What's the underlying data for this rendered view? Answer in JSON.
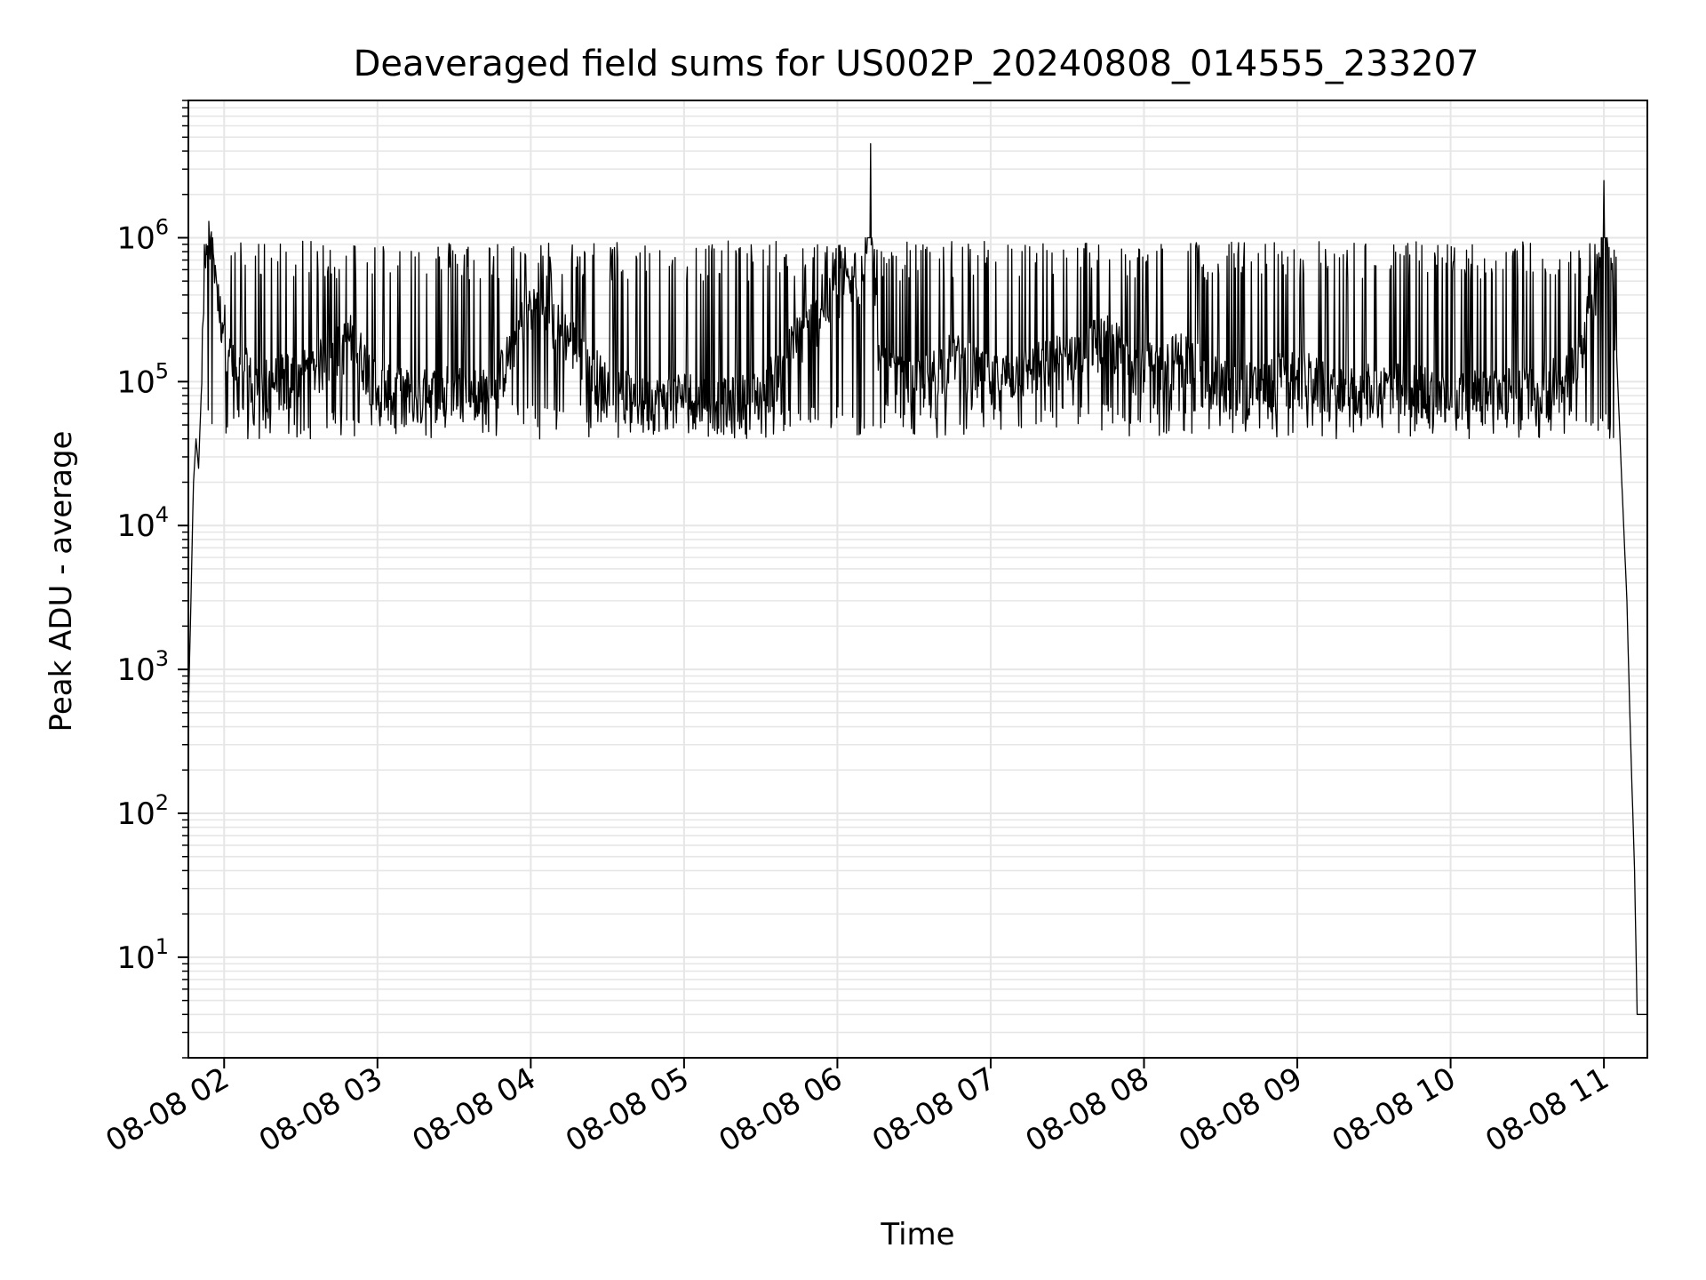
{
  "chart_data": {
    "type": "line",
    "title": "Deaveraged field sums for US002P_20240808_014555_233207",
    "xlabel": "Time",
    "ylabel": "Peak ADU - average",
    "yscale": "log",
    "xlim": [
      "2024-08-08T01:46:00",
      "2024-08-08T11:17:00"
    ],
    "ylim": [
      2,
      9000000
    ],
    "grid": true,
    "line_color": "#000000",
    "grid_color": "#e6e6e6",
    "x_tick_labels": [
      "08-08 02",
      "08-08 03",
      "08-08 04",
      "08-08 05",
      "08-08 06",
      "08-08 07",
      "08-08 08",
      "08-08 09",
      "08-08 10",
      "08-08 11"
    ],
    "x_tick_values": [
      "2024-08-08T02:00:00",
      "2024-08-08T03:00:00",
      "2024-08-08T04:00:00",
      "2024-08-08T05:00:00",
      "2024-08-08T06:00:00",
      "2024-08-08T07:00:00",
      "2024-08-08T08:00:00",
      "2024-08-08T09:00:00",
      "2024-08-08T10:00:00",
      "2024-08-08T11:00:00"
    ],
    "y_tick_exponents": [
      "1",
      "2",
      "3",
      "4",
      "5",
      "6"
    ],
    "y_tick_values": [
      10,
      100,
      1000,
      10000,
      100000,
      1000000
    ],
    "series": [
      {
        "x": [
          "2024-08-08T01:46:00",
          "2024-08-08T01:47:00",
          "2024-08-08T01:48:00",
          "2024-08-08T01:49:00",
          "2024-08-08T01:50:00",
          "2024-08-08T01:51:00",
          "2024-08-08T01:52:00",
          "2024-08-08T01:53:00",
          "2024-08-08T01:54:00",
          "2024-08-08T01:55:00",
          "2024-08-08T01:56:00",
          "2024-08-08T01:57:00",
          "2024-08-08T01:58:00",
          "2024-08-08T02:00:00",
          "2024-08-08T02:02:00",
          "2024-08-08T02:05:00",
          "2024-08-08T02:08:00",
          "2024-08-08T02:12:00",
          "2024-08-08T02:20:00",
          "2024-08-08T02:35:00",
          "2024-08-08T02:50:00",
          "2024-08-08T03:00:00",
          "2024-08-08T03:15:00",
          "2024-08-08T03:30:00",
          "2024-08-08T03:45:00",
          "2024-08-08T04:00:00",
          "2024-08-08T04:15:00",
          "2024-08-08T04:30:00",
          "2024-08-08T04:45:00",
          "2024-08-08T05:00:00",
          "2024-08-08T05:15:00",
          "2024-08-08T05:30:00",
          "2024-08-08T05:45:00",
          "2024-08-08T06:00:00",
          "2024-08-08T06:10:00",
          "2024-08-08T06:13:00",
          "2024-08-08T06:16:00",
          "2024-08-08T06:30:00",
          "2024-08-08T06:45:00",
          "2024-08-08T07:00:00",
          "2024-08-08T07:15:00",
          "2024-08-08T07:30:00",
          "2024-08-08T07:45:00",
          "2024-08-08T08:00:00",
          "2024-08-08T08:15:00",
          "2024-08-08T08:30:00",
          "2024-08-08T08:45:00",
          "2024-08-08T09:00:00",
          "2024-08-08T09:15:00",
          "2024-08-08T09:30:00",
          "2024-08-08T09:45:00",
          "2024-08-08T10:00:00",
          "2024-08-08T10:15:00",
          "2024-08-08T10:30:00",
          "2024-08-08T10:45:00",
          "2024-08-08T10:52:00",
          "2024-08-08T10:57:00",
          "2024-08-08T11:00:00",
          "2024-08-08T11:03:00",
          "2024-08-08T11:05:00",
          "2024-08-08T11:07:00",
          "2024-08-08T11:09:00",
          "2024-08-08T11:10:00",
          "2024-08-08T11:11:00",
          "2024-08-08T11:12:00",
          "2024-08-08T11:13:00",
          "2024-08-08T11:15:00",
          "2024-08-08T11:17:00"
        ],
        "values": [
          500,
          3000,
          20000,
          40000,
          25000,
          80000,
          300000,
          900000,
          1300000,
          1100000,
          700000,
          500000,
          300000,
          250000,
          150000,
          100000,
          120000,
          90000,
          100000,
          120000,
          200000,
          90000,
          80000,
          90000,
          80000,
          350000,
          200000,
          90000,
          70000,
          80000,
          70000,
          80000,
          200000,
          400000,
          500000,
          4500000,
          120000,
          90000,
          150000,
          100000,
          120000,
          150000,
          200000,
          120000,
          150000,
          100000,
          90000,
          120000,
          80000,
          90000,
          90000,
          80000,
          80000,
          90000,
          100000,
          200000,
          500000,
          2500000,
          600000,
          150000,
          20000,
          3000,
          600,
          150,
          40,
          4,
          4,
          4
        ]
      }
    ]
  }
}
